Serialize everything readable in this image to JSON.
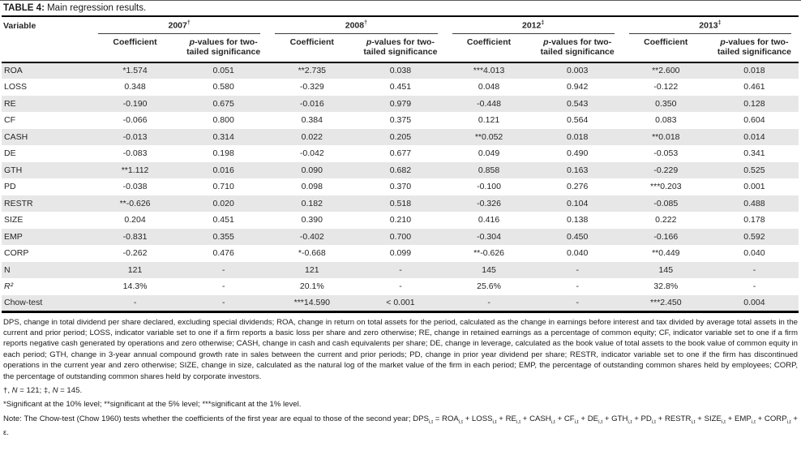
{
  "title": {
    "label": "TABLE 4:",
    "text": " Main regression results."
  },
  "table": {
    "variable_header": "Variable",
    "year_groups": [
      {
        "year": "2007",
        "marker": "†"
      },
      {
        "year": "2008",
        "marker": "†"
      },
      {
        "year": "2012",
        "marker": "‡"
      },
      {
        "year": "2013",
        "marker": "‡"
      }
    ],
    "subheaders": {
      "coefficient": "Coefficient",
      "p_italic": "p",
      "p_rest": "-values for two-tailed significance"
    },
    "rows": [
      {
        "label": "ROA",
        "cells": [
          "*1.574",
          "0.051",
          "**2.735",
          "0.038",
          "***4.013",
          "0.003",
          "**2.600",
          "0.018"
        ]
      },
      {
        "label": "LOSS",
        "cells": [
          "0.348",
          "0.580",
          "-0.329",
          "0.451",
          "0.048",
          "0.942",
          "-0.122",
          "0.461"
        ]
      },
      {
        "label": "RE",
        "cells": [
          "-0.190",
          "0.675",
          "-0.016",
          "0.979",
          "-0.448",
          "0.543",
          "0.350",
          "0.128"
        ]
      },
      {
        "label": "CF",
        "cells": [
          "-0.066",
          "0.800",
          "0.384",
          "0.375",
          "0.121",
          "0.564",
          "0.083",
          "0.604"
        ]
      },
      {
        "label": "CASH",
        "cells": [
          "-0.013",
          "0.314",
          "0.022",
          "0.205",
          "**0.052",
          "0.018",
          "**0.018",
          "0.014"
        ]
      },
      {
        "label": "DE",
        "cells": [
          "-0.083",
          "0.198",
          "-0.042",
          "0.677",
          "0.049",
          "0.490",
          "-0.053",
          "0.341"
        ]
      },
      {
        "label": "GTH",
        "cells": [
          "**1.112",
          "0.016",
          "0.090",
          "0.682",
          "0.858",
          "0.163",
          "-0.229",
          "0.525"
        ]
      },
      {
        "label": "PD",
        "cells": [
          "-0.038",
          "0.710",
          "0.098",
          "0.370",
          "-0.100",
          "0.276",
          "***0.203",
          "0.001"
        ]
      },
      {
        "label": "RESTR",
        "cells": [
          "**-0.626",
          "0.020",
          "0.182",
          "0.518",
          "-0.326",
          "0.104",
          "-0.085",
          "0.488"
        ]
      },
      {
        "label": "SIZE",
        "cells": [
          "0.204",
          "0.451",
          "0.390",
          "0.210",
          "0.416",
          "0.138",
          "0.222",
          "0.178"
        ]
      },
      {
        "label": "EMP",
        "cells": [
          "-0.831",
          "0.355",
          "-0.402",
          "0.700",
          "-0.304",
          "0.450",
          "-0.166",
          "0.592"
        ]
      },
      {
        "label": "CORP",
        "cells": [
          "-0.262",
          "0.476",
          "*-0.668",
          "0.099",
          "**-0.626",
          "0.040",
          "**0.449",
          "0.040"
        ]
      },
      {
        "label": "N",
        "cells": [
          "121",
          "-",
          "121",
          "-",
          "145",
          "-",
          "145",
          "-"
        ]
      },
      {
        "label": "R²",
        "label_italic": true,
        "cells": [
          "14.3%",
          "-",
          "20.1%",
          "-",
          "25.6%",
          "-",
          "32.8%",
          "-"
        ]
      },
      {
        "label": "Chow-test",
        "cells": [
          "-",
          "-",
          "***14.590",
          "< 0.001",
          "-",
          "-",
          "***2.450",
          "0.004"
        ]
      }
    ]
  },
  "footnotes": {
    "definitions": "DPS, change in total dividend per share declared, excluding special dividends; ROA, change in return on total assets for the period, calculated as the change in earnings before interest and tax divided by average total assets in the current and prior period; LOSS, indicator variable set to one if a firm reports a basic loss per share and zero otherwise; RE, change in retained earnings as a percentage of common equity; CF, indicator variable set to one if a firm reports negative cash generated by operations and zero otherwise; CASH, change in cash and cash equivalents per share; DE, change in leverage, calculated as the book value of total assets to the book value of common equity in each period; GTH, change in 3-year annual compound growth rate in sales between the current and prior periods; PD, change in prior year dividend per share; RESTR, indicator variable set to one if the firm has discontinued operations in the current year and zero otherwise; SIZE, change in size, calculated as the natural log of the market value of the firm in each period; EMP, the percentage of outstanding common shares held by employees; CORP, the percentage of outstanding common shares held by corporate investors.",
    "sample_sizes_segments": [
      {
        "text": "†, "
      },
      {
        "text": "N",
        "italic": true
      },
      {
        "text": " = 121; ‡, "
      },
      {
        "text": "N",
        "italic": true
      },
      {
        "text": " = 145."
      }
    ],
    "significance": "*Significant at the 10% level; **significant at the 5% level; ***significant at the 1% level.",
    "note_segments": [
      {
        "text": "Note: The Chow-test (Chow 1960) tests whether the coefficients of the first year are equal to those of the second year; DPS"
      },
      {
        "text": "i,t",
        "tag": "sub"
      },
      {
        "text": " = ROA"
      },
      {
        "text": "i,t",
        "tag": "sub"
      },
      {
        "text": " + LOSS"
      },
      {
        "text": "i,t",
        "tag": "sub"
      },
      {
        "text": " + RE"
      },
      {
        "text": "i,t",
        "tag": "sub"
      },
      {
        "text": " + CASH"
      },
      {
        "text": "i,t",
        "tag": "sub"
      },
      {
        "text": " + CF"
      },
      {
        "text": "i,t",
        "tag": "sub"
      },
      {
        "text": " + DE"
      },
      {
        "text": "i,t",
        "tag": "sub"
      },
      {
        "text": " + GTH"
      },
      {
        "text": "i,t",
        "tag": "sub"
      },
      {
        "text": " + PD"
      },
      {
        "text": "i,t",
        "tag": "sub"
      },
      {
        "text": " + RESTR"
      },
      {
        "text": "i,t",
        "tag": "sub"
      },
      {
        "text": " + SIZE"
      },
      {
        "text": "i,t",
        "tag": "sub"
      },
      {
        "text": " + EMP"
      },
      {
        "text": "i,t",
        "tag": "sub"
      },
      {
        "text": " + CORP"
      },
      {
        "text": "i,t",
        "tag": "sub"
      },
      {
        "text": " + ε."
      }
    ],
    "colors": {
      "stripe": "#e7e7e7",
      "rule": "#000000"
    }
  }
}
